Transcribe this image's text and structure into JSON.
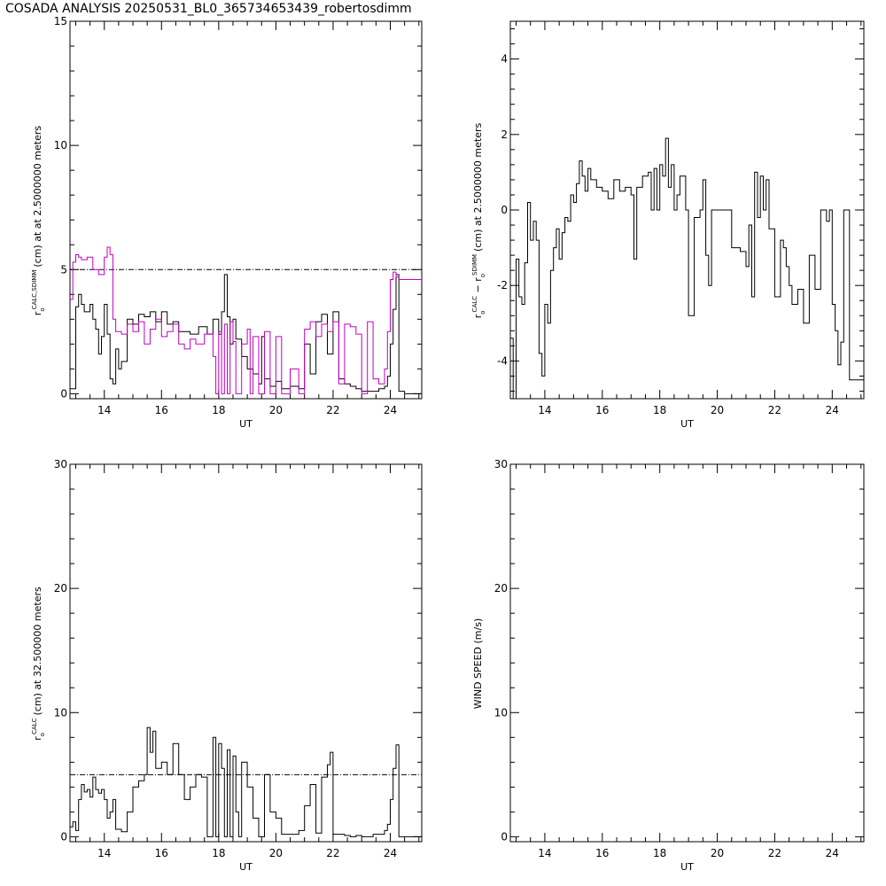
{
  "title": "COSADA ANALYSIS 20250531_BL0_365734653439_robertosdimm",
  "colors": {
    "line": "#000000",
    "magenta": "#c000c0",
    "background": "#ffffff"
  },
  "chart_data": [
    {
      "type": "line",
      "xlabel": "UT",
      "ylabel": {
        "r": "r",
        "sub": "o",
        "sup": "CALC,SDIMM",
        "rest": "(cm)  at   at 2.5000000 meters"
      },
      "xlim": [
        12.8,
        25.1
      ],
      "ylim": [
        -0.2,
        15
      ],
      "xticks": [
        "14",
        "16",
        "18",
        "20",
        "22",
        "24"
      ],
      "yticks": [
        "0",
        "5",
        "10",
        "15"
      ],
      "reference_line": 5,
      "series": [
        {
          "color": "#000000",
          "x": [
            12.8,
            13.0,
            13.1,
            13.2,
            13.3,
            13.5,
            13.6,
            13.7,
            13.8,
            13.9,
            14.0,
            14.1,
            14.2,
            14.3,
            14.4,
            14.5,
            14.6,
            14.8,
            15.0,
            15.2,
            15.4,
            15.6,
            15.8,
            16.0,
            16.2,
            16.4,
            16.6,
            16.8,
            17.0,
            17.3,
            17.6,
            17.8,
            18.0,
            18.1,
            18.2,
            18.3,
            18.4,
            18.5,
            18.6,
            18.8,
            19.0,
            19.2,
            19.4,
            19.5,
            19.6,
            19.8,
            20.0,
            20.2,
            20.5,
            20.8,
            21.0,
            21.2,
            21.4,
            21.6,
            21.8,
            22.0,
            22.2,
            22.4,
            22.6,
            22.8,
            23.0,
            23.2,
            23.4,
            23.6,
            23.8,
            23.9,
            24.0,
            24.1,
            24.2,
            24.3,
            24.5,
            24.8,
            25.1
          ],
          "y": [
            0.2,
            3.5,
            4.0,
            3.6,
            3.3,
            3.6,
            3.0,
            2.6,
            1.6,
            2.3,
            3.6,
            2.4,
            0.6,
            0.4,
            1.8,
            1.0,
            1.3,
            3.0,
            2.8,
            3.2,
            3.1,
            3.3,
            2.9,
            3.3,
            2.8,
            2.9,
            2.5,
            2.5,
            2.4,
            2.7,
            2.4,
            3.0,
            2.4,
            3.3,
            4.8,
            3.1,
            2.0,
            3.0,
            2.2,
            1.5,
            1.0,
            0.8,
            0.4,
            2.3,
            0.6,
            0.3,
            0.5,
            0.2,
            0.3,
            0.2,
            2.0,
            0.8,
            2.9,
            3.2,
            1.6,
            3.3,
            0.6,
            0.4,
            0.3,
            0.2,
            0.1,
            0.1,
            0.1,
            0.2,
            0.3,
            0.7,
            2.0,
            3.4,
            4.8,
            0.1,
            0.0,
            0.0,
            0.0
          ]
        },
        {
          "color": "#c000c0",
          "x": [
            12.8,
            12.9,
            13.0,
            13.1,
            13.2,
            13.4,
            13.6,
            13.8,
            14.0,
            14.1,
            14.2,
            14.3,
            14.4,
            14.6,
            14.8,
            15.0,
            15.2,
            15.4,
            15.6,
            15.8,
            16.0,
            16.2,
            16.4,
            16.6,
            16.8,
            17.0,
            17.2,
            17.5,
            17.8,
            17.9,
            18.0,
            18.1,
            18.2,
            18.3,
            18.4,
            18.5,
            18.6,
            18.8,
            19.0,
            19.1,
            19.2,
            19.4,
            19.6,
            19.8,
            20.0,
            20.2,
            20.5,
            20.8,
            21.0,
            21.2,
            21.4,
            21.6,
            21.8,
            22.0,
            22.2,
            22.4,
            22.6,
            22.8,
            23.0,
            23.2,
            23.4,
            23.6,
            23.8,
            23.9,
            24.0,
            24.1,
            24.2,
            24.3,
            24.5,
            25.1
          ],
          "y": [
            3.8,
            5.3,
            5.6,
            5.5,
            5.4,
            5.5,
            5.0,
            4.8,
            5.5,
            5.9,
            5.6,
            3.0,
            2.5,
            2.4,
            2.8,
            2.5,
            2.9,
            2.0,
            2.6,
            3.0,
            2.3,
            2.5,
            2.8,
            2.0,
            1.8,
            2.2,
            2.0,
            2.4,
            1.5,
            0.0,
            2.5,
            0.0,
            2.8,
            0.0,
            2.9,
            2.1,
            0.0,
            2.0,
            2.6,
            0.0,
            2.3,
            0.0,
            2.5,
            0.0,
            2.3,
            0.0,
            1.0,
            0.0,
            2.6,
            2.9,
            2.3,
            2.8,
            2.5,
            2.9,
            0.4,
            2.8,
            2.7,
            2.4,
            0.0,
            2.9,
            0.6,
            0.4,
            1.0,
            2.5,
            4.6,
            4.9,
            4.7,
            4.6,
            4.6,
            4.6
          ]
        }
      ]
    },
    {
      "type": "line",
      "xlabel": "UT",
      "ylabel": {
        "r1": "r",
        "sub1": "o",
        "sup1": "CALC",
        "mid": " − r",
        "sub2": "o",
        "sup2": "SDIMM",
        "rest": "(cm) at 2.5000000 meters"
      },
      "xlim": [
        12.8,
        25.1
      ],
      "ylim": [
        -5,
        5
      ],
      "xticks": [
        "14",
        "16",
        "18",
        "20",
        "22",
        "24"
      ],
      "yticks": [
        "-4",
        "-2",
        "0",
        "2",
        "4"
      ],
      "series": [
        {
          "color": "#000000",
          "x": [
            12.8,
            12.9,
            13.0,
            13.1,
            13.2,
            13.3,
            13.4,
            13.5,
            13.6,
            13.7,
            13.8,
            13.9,
            14.0,
            14.1,
            14.2,
            14.3,
            14.4,
            14.5,
            14.6,
            14.7,
            14.8,
            14.9,
            15.0,
            15.1,
            15.2,
            15.3,
            15.4,
            15.5,
            15.6,
            15.8,
            16.0,
            16.2,
            16.4,
            16.6,
            16.8,
            17.0,
            17.1,
            17.2,
            17.4,
            17.6,
            17.7,
            17.8,
            17.9,
            18.0,
            18.1,
            18.2,
            18.3,
            18.4,
            18.5,
            18.6,
            18.7,
            18.9,
            19.0,
            19.2,
            19.4,
            19.5,
            19.6,
            19.7,
            19.8,
            20.0,
            20.5,
            20.8,
            21.0,
            21.1,
            21.2,
            21.3,
            21.4,
            21.5,
            21.6,
            21.7,
            21.8,
            22.0,
            22.2,
            22.3,
            22.4,
            22.5,
            22.6,
            22.8,
            23.0,
            23.2,
            23.4,
            23.6,
            23.8,
            23.9,
            24.0,
            24.1,
            24.2,
            24.3,
            24.4,
            24.6,
            25.1
          ],
          "y": [
            -3.4,
            -5.0,
            -1.3,
            -2.3,
            -2.5,
            -1.4,
            0.2,
            -0.8,
            -0.3,
            -0.8,
            -3.8,
            -4.4,
            -2.5,
            -3.0,
            -1.6,
            -1.0,
            -0.5,
            -1.3,
            -0.6,
            -0.2,
            -0.3,
            0.4,
            0.2,
            0.7,
            1.3,
            0.9,
            0.5,
            1.1,
            0.8,
            0.6,
            0.5,
            0.3,
            0.8,
            0.5,
            0.6,
            0.4,
            -1.3,
            0.6,
            0.9,
            1.0,
            0.0,
            1.1,
            0.0,
            1.2,
            0.9,
            1.9,
            0.6,
            1.2,
            0.0,
            0.4,
            0.9,
            0.0,
            -2.8,
            -0.2,
            0.0,
            0.8,
            -1.2,
            -2.0,
            0.0,
            0.0,
            -1.0,
            -1.1,
            -1.5,
            -0.4,
            -2.3,
            1.0,
            -0.2,
            0.9,
            0.0,
            0.8,
            -0.5,
            -2.3,
            -0.8,
            -1.0,
            -1.5,
            -2.0,
            -2.5,
            -2.1,
            -3.0,
            -1.2,
            -2.1,
            0.0,
            -0.3,
            0.0,
            -2.5,
            -3.2,
            -4.1,
            -3.5,
            0.0,
            -4.5,
            -4.5
          ]
        }
      ]
    },
    {
      "type": "line",
      "xlabel": "UT",
      "ylabel": {
        "r": "r",
        "sub": "o",
        "sup": "CALC",
        "rest": "(cm) at 32.500000 meters"
      },
      "xlim": [
        12.8,
        25.1
      ],
      "ylim": [
        -0.4,
        30
      ],
      "xticks": [
        "14",
        "16",
        "18",
        "20",
        "22",
        "24"
      ],
      "yticks": [
        "0",
        "10",
        "20",
        "30"
      ],
      "reference_line": 5,
      "series": [
        {
          "color": "#000000",
          "x": [
            12.8,
            12.9,
            13.0,
            13.1,
            13.2,
            13.3,
            13.4,
            13.5,
            13.6,
            13.7,
            13.8,
            13.9,
            14.0,
            14.1,
            14.2,
            14.3,
            14.4,
            14.6,
            14.8,
            15.0,
            15.2,
            15.4,
            15.5,
            15.6,
            15.7,
            15.8,
            16.0,
            16.2,
            16.4,
            16.6,
            16.8,
            17.0,
            17.2,
            17.4,
            17.6,
            17.8,
            17.9,
            18.0,
            18.1,
            18.2,
            18.3,
            18.4,
            18.5,
            18.6,
            18.7,
            18.8,
            19.0,
            19.2,
            19.4,
            19.6,
            19.8,
            20.0,
            20.2,
            20.5,
            20.8,
            21.0,
            21.2,
            21.4,
            21.6,
            21.8,
            21.9,
            22.0,
            22.2,
            22.4,
            22.6,
            22.8,
            23.0,
            23.2,
            23.4,
            23.6,
            23.8,
            23.9,
            24.0,
            24.1,
            24.2,
            24.3,
            24.5,
            25.1
          ],
          "y": [
            0.8,
            1.2,
            0.5,
            3.0,
            4.2,
            3.6,
            3.8,
            3.2,
            4.8,
            3.8,
            3.5,
            3.8,
            3.0,
            1.5,
            2.0,
            3.0,
            0.6,
            0.4,
            2.0,
            4.0,
            4.5,
            5.0,
            8.8,
            6.8,
            8.5,
            5.5,
            6.0,
            5.0,
            7.5,
            5.0,
            3.0,
            4.0,
            5.0,
            4.8,
            0.0,
            8.0,
            0.0,
            7.5,
            5.5,
            0.0,
            7.0,
            0.0,
            6.5,
            2.0,
            0.0,
            6.0,
            4.0,
            1.5,
            0.0,
            5.0,
            2.0,
            1.5,
            0.2,
            0.2,
            0.5,
            2.5,
            4.2,
            0.3,
            4.8,
            5.8,
            6.8,
            0.2,
            0.2,
            0.1,
            0.0,
            0.1,
            0.0,
            0.0,
            0.2,
            0.2,
            0.5,
            1.0,
            3.0,
            5.5,
            7.4,
            0.0,
            0.0,
            0.0
          ]
        }
      ]
    },
    {
      "type": "line",
      "xlabel": "UT",
      "ylabel": {
        "text": "WIND SPEED (m/s)"
      },
      "xlim": [
        12.8,
        25.1
      ],
      "ylim": [
        -0.4,
        30
      ],
      "xticks": [
        "14",
        "16",
        "18",
        "20",
        "22",
        "24"
      ],
      "yticks": [
        "0",
        "10",
        "20",
        "30"
      ],
      "series": []
    }
  ]
}
